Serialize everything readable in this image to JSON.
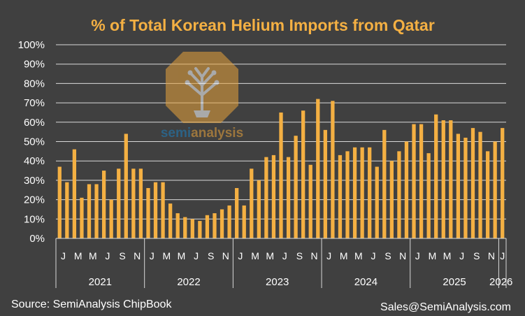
{
  "chart_data": {
    "type": "bar",
    "title": "% of Total Korean Helium Imports from Qatar",
    "xlabel": "",
    "ylabel": "",
    "ylim": [
      0,
      100
    ],
    "yticks": [
      "0%",
      "10%",
      "20%",
      "30%",
      "40%",
      "50%",
      "60%",
      "70%",
      "80%",
      "90%",
      "100%"
    ],
    "month_labels": [
      "J",
      "M",
      "M",
      "J",
      "S",
      "N"
    ],
    "years": [
      "2021",
      "2022",
      "2023",
      "2024",
      "2025",
      "2026"
    ],
    "last_year_tick": "J",
    "categories": [
      "2021-01",
      "2021-02",
      "2021-03",
      "2021-04",
      "2021-05",
      "2021-06",
      "2021-07",
      "2021-08",
      "2021-09",
      "2021-10",
      "2021-11",
      "2021-12",
      "2022-01",
      "2022-02",
      "2022-03",
      "2022-04",
      "2022-05",
      "2022-06",
      "2022-07",
      "2022-08",
      "2022-09",
      "2022-10",
      "2022-11",
      "2022-12",
      "2023-01",
      "2023-02",
      "2023-03",
      "2023-04",
      "2023-05",
      "2023-06",
      "2023-07",
      "2023-08",
      "2023-09",
      "2023-10",
      "2023-11",
      "2023-12",
      "2024-01",
      "2024-02",
      "2024-03",
      "2024-04",
      "2024-05",
      "2024-06",
      "2024-07",
      "2024-08",
      "2024-09",
      "2024-10",
      "2024-11",
      "2024-12",
      "2025-01",
      "2025-02",
      "2025-03",
      "2025-04",
      "2025-05",
      "2025-06",
      "2025-07",
      "2025-08",
      "2025-09",
      "2025-10",
      "2025-11",
      "2025-12",
      "2026-01"
    ],
    "series": [
      {
        "name": "% from Qatar",
        "values": [
          37,
          29,
          46,
          21,
          28,
          28,
          35,
          20,
          36,
          54,
          36,
          36,
          26,
          29,
          29,
          18,
          13,
          11,
          10,
          9,
          12,
          13,
          15,
          17,
          26,
          17,
          36,
          30,
          42,
          43,
          65,
          42,
          53,
          66,
          38,
          72,
          56,
          71,
          43,
          45,
          47,
          47,
          47,
          37,
          56,
          40,
          45,
          50,
          59,
          59,
          44,
          64,
          61,
          61,
          54,
          52,
          57,
          55,
          45,
          50,
          57
        ]
      }
    ],
    "bar_color": "#F4B043",
    "grid": true
  },
  "footer": {
    "source": "Source: SemiAnalysis ChipBook",
    "contact": "Sales@SemiAnalysis.com"
  },
  "watermark": {
    "text_left": "semi",
    "text_right": "analysis",
    "color_left": "#1C7FBF",
    "color_right": "#E8A33C"
  },
  "colors": {
    "background": "#404040",
    "bar": "#F4B043",
    "title": "#F4B043",
    "grid": "#D9D9D9",
    "text": "#FFFFFF"
  }
}
